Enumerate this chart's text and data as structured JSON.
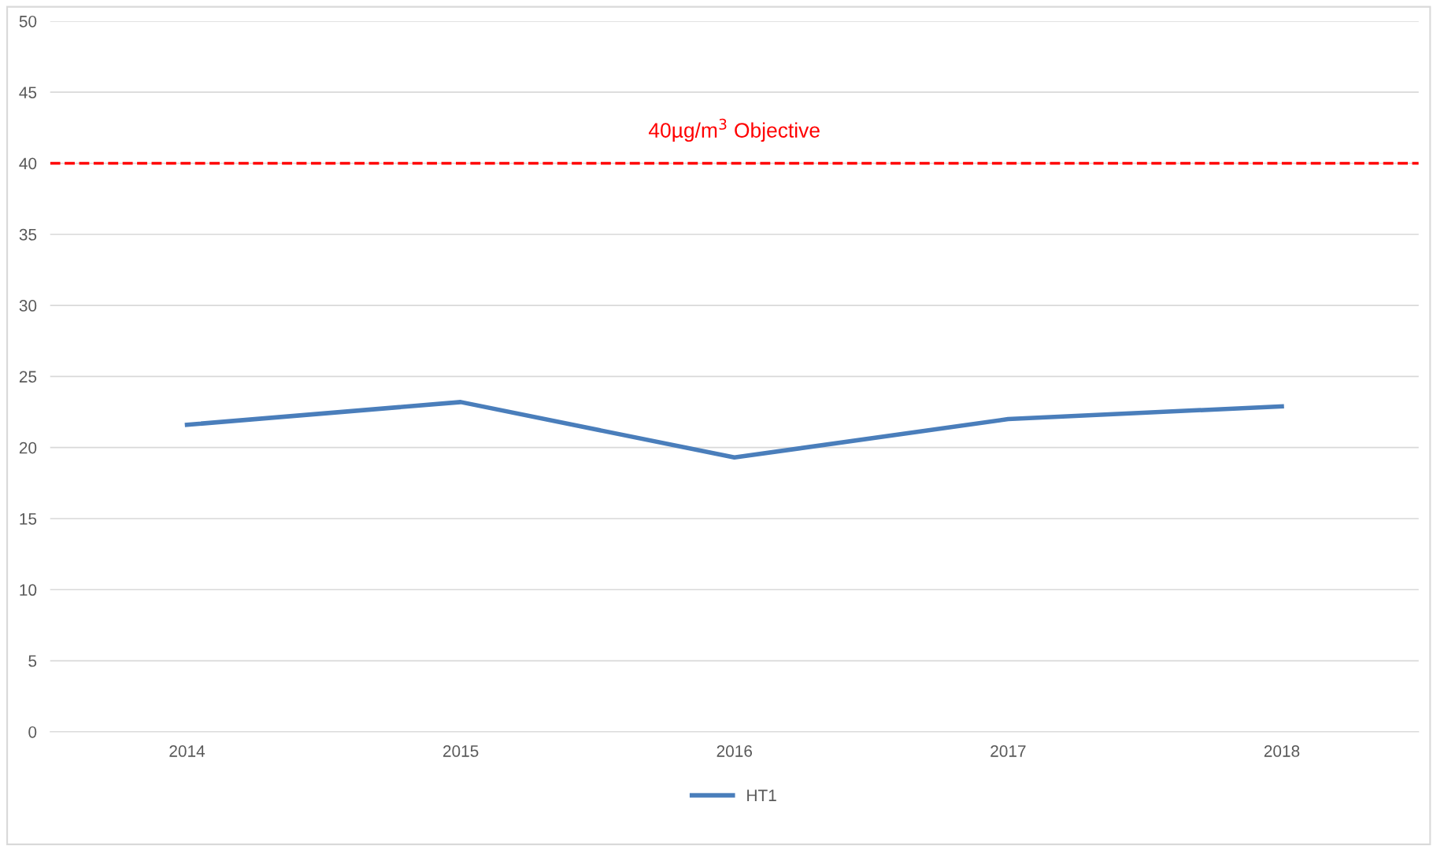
{
  "chart_data": {
    "type": "line",
    "categories": [
      "2014",
      "2015",
      "2016",
      "2017",
      "2018"
    ],
    "series": [
      {
        "name": "HT1",
        "color": "#4a7ebb",
        "values": [
          21.6,
          23.2,
          19.3,
          22.0,
          22.9
        ]
      }
    ],
    "ylim": [
      0,
      50
    ],
    "yticks": [
      0,
      5,
      10,
      15,
      20,
      25,
      30,
      35,
      40,
      45,
      50
    ],
    "ref_lines": [
      {
        "axis": "y",
        "value": 40,
        "label": "40µg/m$^{3}$ Objective",
        "color": "#ff0000",
        "line_style": "dashed"
      }
    ],
    "grid": "y",
    "legend": "bottom",
    "marker": "none",
    "line_style": "solid"
  }
}
